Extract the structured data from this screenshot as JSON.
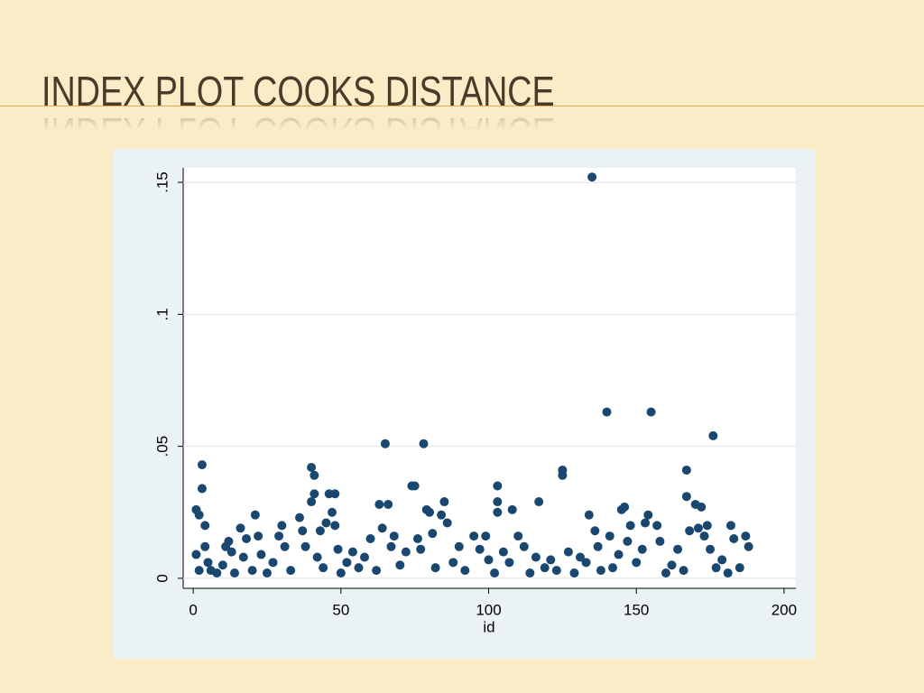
{
  "header": {
    "title": "INDEX PLOT COOKS DISTANCE"
  },
  "chart_data": {
    "type": "scatter",
    "x_label": "id",
    "color": "#1a476f",
    "grid": true,
    "xlim": [
      -3.4,
      204
    ],
    "ylim": [
      -0.0038,
      0.1555
    ],
    "xticks": [
      0,
      50,
      100,
      150,
      200
    ],
    "yticks": [
      0,
      {
        "value": 0.05,
        "label": ".05"
      },
      {
        "value": 0.1,
        "label": ".1"
      },
      {
        "value": 0.15,
        "label": ".15"
      }
    ],
    "x": [
      1,
      2,
      3,
      3,
      4,
      1,
      2,
      4,
      5,
      6,
      8,
      10,
      11,
      12,
      13,
      14,
      16,
      17,
      18,
      20,
      21,
      22,
      23,
      25,
      27,
      29,
      30,
      31,
      33,
      36,
      37,
      38,
      40,
      41,
      41,
      40,
      42,
      43,
      44,
      45,
      46,
      48,
      47,
      48,
      49,
      50,
      52,
      54,
      56,
      58,
      60,
      62,
      63,
      64,
      65,
      66,
      67,
      68,
      70,
      72,
      74,
      75,
      76,
      77,
      78,
      79,
      80,
      81,
      82,
      84,
      85,
      86,
      88,
      90,
      92,
      95,
      97,
      99,
      100,
      102,
      103,
      103,
      103,
      105,
      107,
      108,
      110,
      112,
      114,
      116,
      117,
      119,
      121,
      123,
      125,
      125,
      127,
      129,
      131,
      133,
      134,
      135,
      136,
      137,
      138,
      140,
      141,
      142,
      144,
      145,
      146,
      147,
      148,
      150,
      152,
      153,
      154,
      155,
      157,
      158,
      160,
      162,
      164,
      166,
      167,
      167,
      168,
      170,
      171,
      172,
      173,
      174,
      175,
      176,
      177,
      179,
      181,
      182,
      183,
      185,
      187,
      188
    ],
    "y": [
      0.026,
      0.024,
      0.043,
      0.034,
      0.02,
      0.009,
      0.003,
      0.012,
      0.006,
      0.003,
      0.002,
      0.005,
      0.012,
      0.014,
      0.01,
      0.002,
      0.019,
      0.008,
      0.015,
      0.003,
      0.024,
      0.016,
      0.009,
      0.002,
      0.006,
      0.016,
      0.02,
      0.012,
      0.003,
      0.023,
      0.018,
      0.012,
      0.042,
      0.039,
      0.032,
      0.029,
      0.008,
      0.018,
      0.004,
      0.021,
      0.032,
      0.032,
      0.025,
      0.02,
      0.011,
      0.002,
      0.006,
      0.01,
      0.004,
      0.008,
      0.015,
      0.003,
      0.028,
      0.019,
      0.051,
      0.028,
      0.012,
      0.016,
      0.005,
      0.01,
      0.035,
      0.035,
      0.015,
      0.011,
      0.051,
      0.026,
      0.025,
      0.017,
      0.004,
      0.024,
      0.029,
      0.021,
      0.006,
      0.012,
      0.003,
      0.016,
      0.011,
      0.016,
      0.007,
      0.002,
      0.035,
      0.029,
      0.025,
      0.01,
      0.006,
      0.026,
      0.016,
      0.012,
      0.002,
      0.008,
      0.029,
      0.004,
      0.007,
      0.003,
      0.041,
      0.039,
      0.01,
      0.002,
      0.008,
      0.006,
      0.024,
      0.152,
      0.018,
      0.012,
      0.003,
      0.063,
      0.016,
      0.004,
      0.009,
      0.026,
      0.027,
      0.014,
      0.02,
      0.006,
      0.011,
      0.021,
      0.024,
      0.063,
      0.02,
      0.014,
      0.002,
      0.005,
      0.011,
      0.003,
      0.041,
      0.031,
      0.018,
      0.028,
      0.019,
      0.027,
      0.016,
      0.02,
      0.011,
      0.054,
      0.004,
      0.007,
      0.002,
      0.02,
      0.015,
      0.004,
      0.016,
      0.012
    ]
  }
}
